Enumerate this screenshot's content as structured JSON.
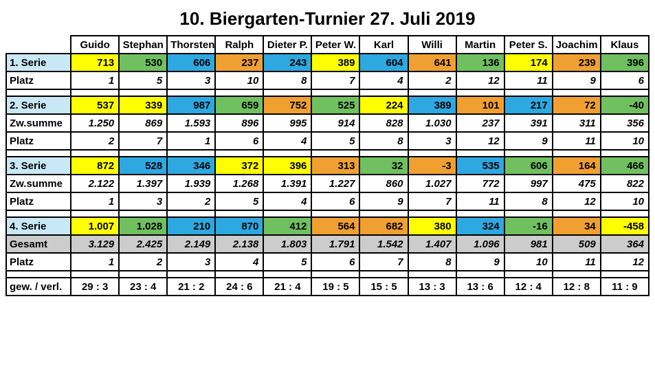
{
  "title": "10. Biergarten-Turnier 27. Juli 2019",
  "colors": {
    "yellow": "#ffff00",
    "green": "#70c060",
    "blue": "#2ea8e0",
    "orange": "#f0a030",
    "header_blue": "#c9e8f5",
    "grey": "#cccccc"
  },
  "players": [
    "Guido",
    "Stephan",
    "Thorsten",
    "Ralph",
    "Dieter P.",
    "Peter W.",
    "Karl",
    "Willi",
    "Martin",
    "Peter S.",
    "Joachim",
    "Klaus"
  ],
  "row_labels": {
    "serie1": "1. Serie",
    "platz": "Platz",
    "serie2": "2. Serie",
    "zwsumme": "Zw.summe",
    "serie3": "3. Serie",
    "serie4": "4. Serie",
    "gesamt": "Gesamt",
    "ratio": "gew. / verl."
  },
  "serie1": {
    "values": [
      "713",
      "530",
      "606",
      "237",
      "243",
      "389",
      "604",
      "641",
      "136",
      "174",
      "239",
      "396"
    ],
    "colors": [
      "yellow",
      "green",
      "blue",
      "orange",
      "blue",
      "yellow",
      "blue",
      "orange",
      "green",
      "yellow",
      "orange",
      "green"
    ]
  },
  "platz1": [
    "1",
    "5",
    "3",
    "10",
    "8",
    "7",
    "4",
    "2",
    "12",
    "11",
    "9",
    "6"
  ],
  "serie2": {
    "values": [
      "537",
      "339",
      "987",
      "659",
      "752",
      "525",
      "224",
      "389",
      "101",
      "217",
      "72",
      "-40"
    ],
    "colors": [
      "yellow",
      "yellow",
      "blue",
      "green",
      "orange",
      "green",
      "yellow",
      "blue",
      "orange",
      "blue",
      "orange",
      "green"
    ]
  },
  "zwsumme2": [
    "1.250",
    "869",
    "1.593",
    "896",
    "995",
    "914",
    "828",
    "1.030",
    "237",
    "391",
    "311",
    "356"
  ],
  "platz2": [
    "2",
    "7",
    "1",
    "6",
    "4",
    "5",
    "8",
    "3",
    "12",
    "9",
    "11",
    "10"
  ],
  "serie3": {
    "values": [
      "872",
      "528",
      "346",
      "372",
      "396",
      "313",
      "32",
      "-3",
      "535",
      "606",
      "164",
      "466"
    ],
    "colors": [
      "yellow",
      "blue",
      "blue",
      "yellow",
      "yellow",
      "orange",
      "green",
      "orange",
      "blue",
      "green",
      "orange",
      "green"
    ]
  },
  "zwsumme3": [
    "2.122",
    "1.397",
    "1.939",
    "1.268",
    "1.391",
    "1.227",
    "860",
    "1.027",
    "772",
    "997",
    "475",
    "822"
  ],
  "platz3": [
    "1",
    "3",
    "2",
    "5",
    "4",
    "6",
    "9",
    "7",
    "11",
    "8",
    "12",
    "10"
  ],
  "serie4": {
    "values": [
      "1.007",
      "1.028",
      "210",
      "870",
      "412",
      "564",
      "682",
      "380",
      "324",
      "-16",
      "34",
      "-458"
    ],
    "colors": [
      "yellow",
      "green",
      "blue",
      "blue",
      "green",
      "orange",
      "orange",
      "yellow",
      "blue",
      "green",
      "orange",
      "yellow"
    ]
  },
  "gesamt": [
    "3.129",
    "2.425",
    "2.149",
    "2.138",
    "1.803",
    "1.791",
    "1.542",
    "1.407",
    "1.096",
    "981",
    "509",
    "364"
  ],
  "platz4": [
    "1",
    "2",
    "3",
    "4",
    "5",
    "6",
    "7",
    "8",
    "9",
    "10",
    "11",
    "12"
  ],
  "ratio": [
    "29 : 3",
    "23 : 4",
    "21 : 2",
    "24 : 6",
    "21 : 4",
    "19 : 5",
    "15 : 5",
    "13 : 3",
    "13 : 6",
    "12 : 4",
    "12 : 8",
    "11 : 9"
  ]
}
